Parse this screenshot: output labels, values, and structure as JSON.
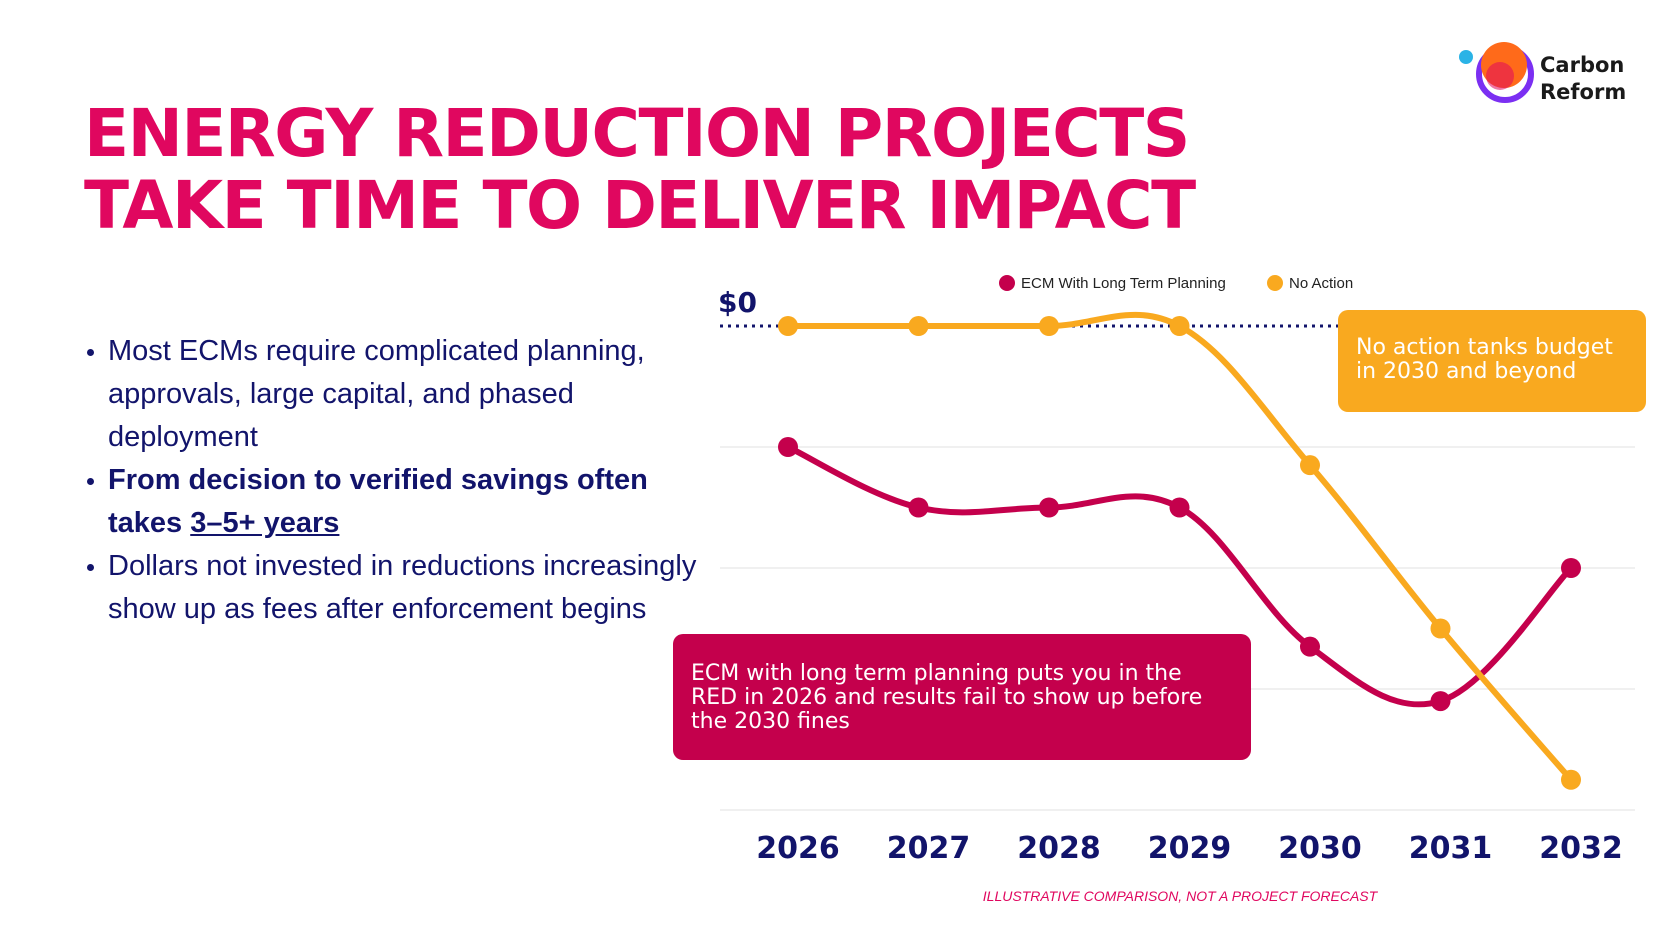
{
  "logo": {
    "line1": "Carbon",
    "line2": "Reform"
  },
  "title": {
    "line1": "ENERGY REDUCTION PROJECTS",
    "line2": "TAKE TIME TO DELIVER IMPACT"
  },
  "bullets": {
    "b1": "Most ECMs require complicated planning, approvals, large capital, and phased deployment",
    "b2_prefix": "From decision to verified savings often takes ",
    "b2_underline": "3–5+ years",
    "b3": "Dollars not invested in reductions increasingly show up as fees after enforcement begins"
  },
  "chart_data": {
    "type": "line",
    "title": "",
    "xlabel": "",
    "ylabel": "",
    "x": [
      "2026",
      "2027",
      "2028",
      "2029",
      "2030",
      "2031",
      "2032"
    ],
    "ylim": [
      -4,
      0.4
    ],
    "zero_label": "$0",
    "grid": true,
    "legend_position": "top-center",
    "series": [
      {
        "name": "ECM With Long Term Planning",
        "color": "#c4004c",
        "values": [
          -1.0,
          -1.5,
          -1.5,
          -1.5,
          -2.65,
          -3.1,
          -2.0
        ]
      },
      {
        "name": "No Action",
        "color": "#f9a91f",
        "values": [
          0,
          0,
          0,
          0,
          -1.15,
          -2.5,
          -3.75
        ]
      }
    ]
  },
  "callouts": {
    "no_action": "No action tanks budget in 2030 and beyond",
    "ecm": "ECM with long term planning puts you in the RED in 2026 and results fail to show up before the 2030 fines"
  },
  "footnote": "ILLUSTRATIVE COMPARISON, NOT A PROJECT FORECAST"
}
